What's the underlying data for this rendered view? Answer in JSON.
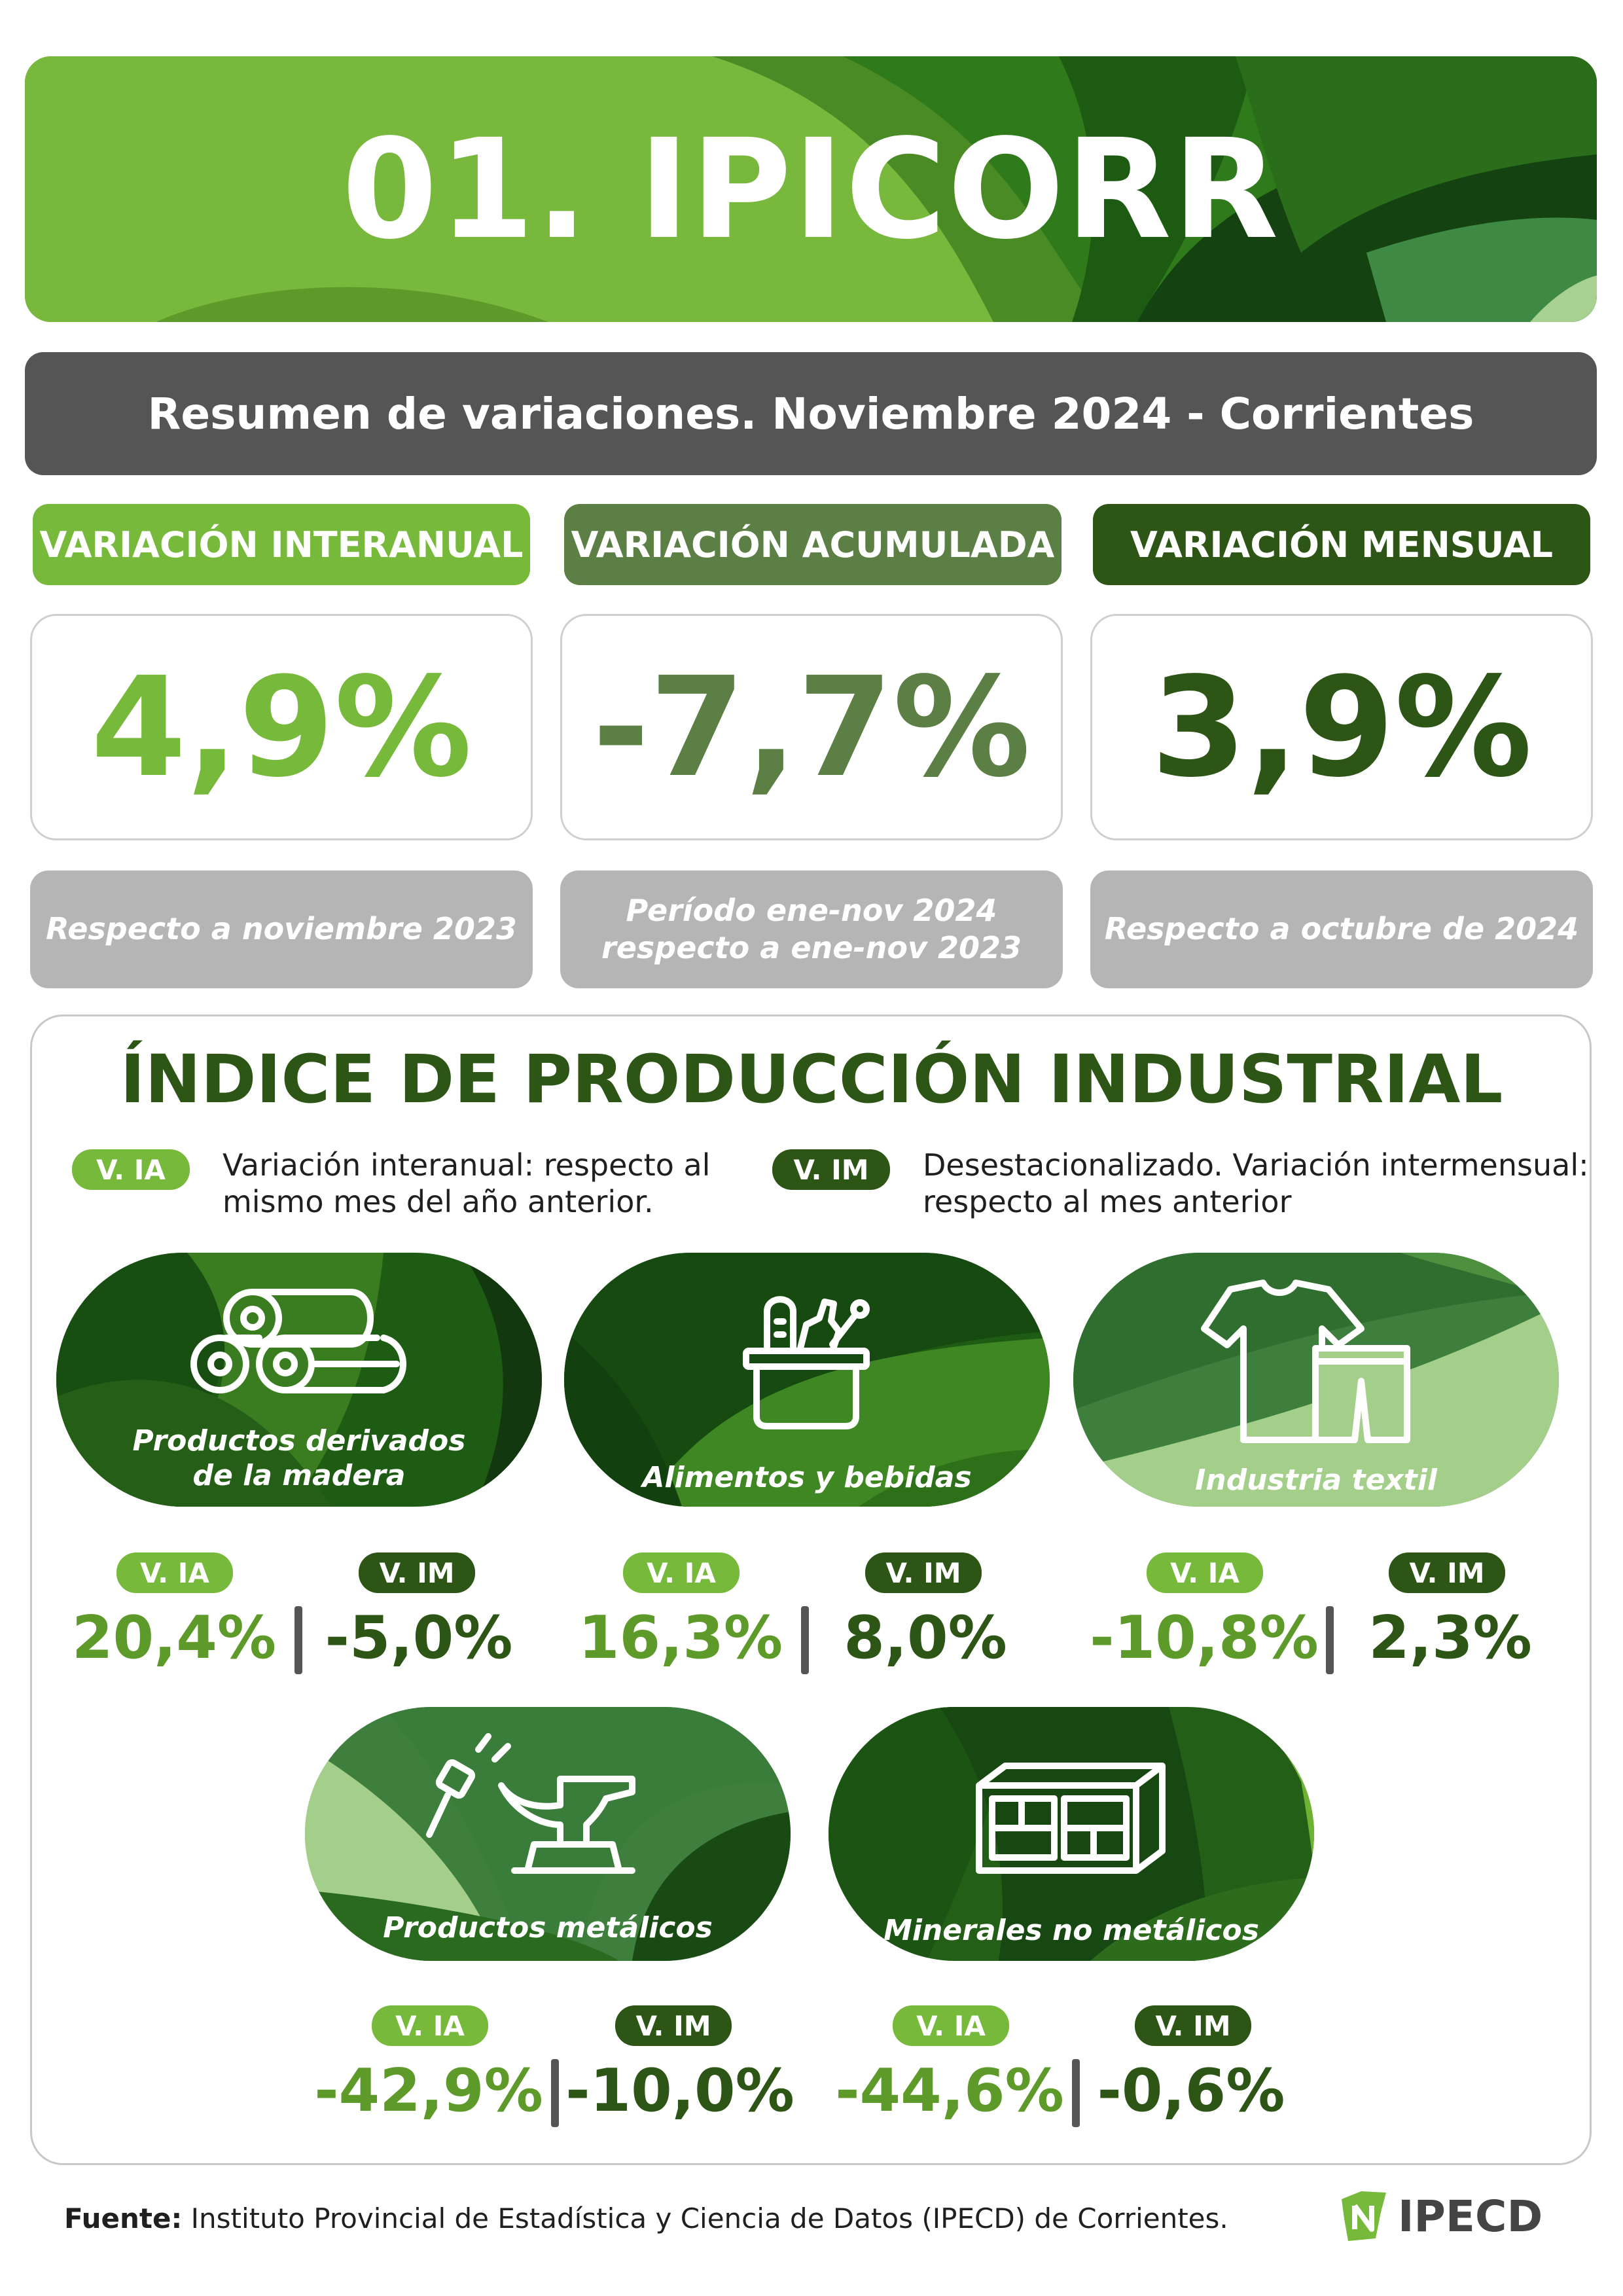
{
  "header": {
    "title": "01. IPICORR"
  },
  "subtitle": "Resumen de variaciones. Noviembre 2024 - Corrientes",
  "variations": [
    {
      "label": "VARIACIÓN INTERANUAL",
      "value": "4,9%",
      "note": "Respecto a noviembre 2023",
      "color": "#77b93b"
    },
    {
      "label": "VARIACIÓN ACUMULADA",
      "value": "-7,7%",
      "note": "Período ene-nov 2024\nrespecto a ene-nov 2023",
      "color": "#5b7f44"
    },
    {
      "label": "VARIACIÓN MENSUAL",
      "value": "3,9%",
      "note": "Respecto a octubre de 2024",
      "color": "#2d5516"
    }
  ],
  "industrial": {
    "title": "ÍNDICE DE PRODUCCIÓN INDUSTRIAL",
    "legend": [
      {
        "tag": "V. IA",
        "text": "Variación interanual: respecto al\nmismo mes del año anterior.",
        "color": "#77b93b"
      },
      {
        "tag": "V. IM",
        "text": "Desestacionalizado. Variación intermensual:\nrespecto al mes anterior",
        "color": "#2d5516"
      }
    ],
    "tag_ia": "V. IA",
    "tag_im": "V. IM",
    "sectors": [
      {
        "name": "Productos derivados\nde la madera",
        "icon": "logs-icon",
        "ia": "20,4%",
        "im": "-5,0%"
      },
      {
        "name": "Alimentos y bebidas",
        "icon": "food-basket-icon",
        "ia": "16,3%",
        "im": "8,0%"
      },
      {
        "name": "Industria textil",
        "icon": "clothing-icon",
        "ia": "-10,8%",
        "im": "2,3%"
      },
      {
        "name": "Productos metálicos",
        "icon": "anvil-hammer-icon",
        "ia": "-42,9%",
        "im": "-10,0%"
      },
      {
        "name": "Minerales no metálicos",
        "icon": "bricks-icon",
        "ia": "-44,6%",
        "im": "-0,6%"
      }
    ],
    "color_ia": "#5e9a2a",
    "color_im": "#2d5516"
  },
  "footer": {
    "label": "Fuente:",
    "text": " Instituto Provincial de Estadística y Ciencia de Datos (IPECD) de Corrientes."
  },
  "logo": {
    "text": "IPECD",
    "icon": "corrientes-map-icon"
  }
}
